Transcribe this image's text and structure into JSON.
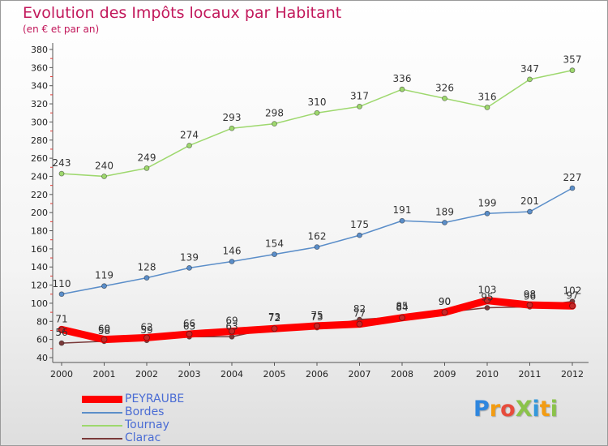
{
  "title": "Evolution des Impôts locaux par Habitant",
  "subtitle": "(en € et par an)",
  "logo": "ProXiti",
  "chart_data": {
    "type": "line",
    "categories": [
      "2000",
      "2001",
      "2002",
      "2003",
      "2004",
      "2005",
      "2006",
      "2007",
      "2008",
      "2009",
      "2010",
      "2011",
      "2012"
    ],
    "ylim": [
      40,
      380
    ],
    "yticks": [
      40,
      60,
      80,
      100,
      120,
      140,
      160,
      180,
      200,
      220,
      240,
      260,
      280,
      300,
      320,
      340,
      360,
      380
    ],
    "grid": false,
    "legend": "bottom-left",
    "series": [
      {
        "name": "PEYRAUBE",
        "color": "#ff0000",
        "values": [
          71,
          60,
          62,
          66,
          69,
          72,
          75,
          77,
          84,
          90,
          103,
          98,
          97
        ]
      },
      {
        "name": "Bordes",
        "color": "#5b8ec9",
        "values": [
          110,
          119,
          128,
          139,
          146,
          154,
          162,
          175,
          191,
          189,
          199,
          201,
          227
        ]
      },
      {
        "name": "Tournay",
        "color": "#9ed86e",
        "values": [
          243,
          240,
          249,
          274,
          293,
          298,
          310,
          317,
          336,
          326,
          316,
          347,
          357
        ]
      },
      {
        "name": "Clarac",
        "color": "#7a3a3a",
        "values": [
          56,
          58,
          59,
          63,
          63,
          73,
          73,
          82,
          85,
          90,
          95,
          96,
          102
        ]
      }
    ]
  }
}
